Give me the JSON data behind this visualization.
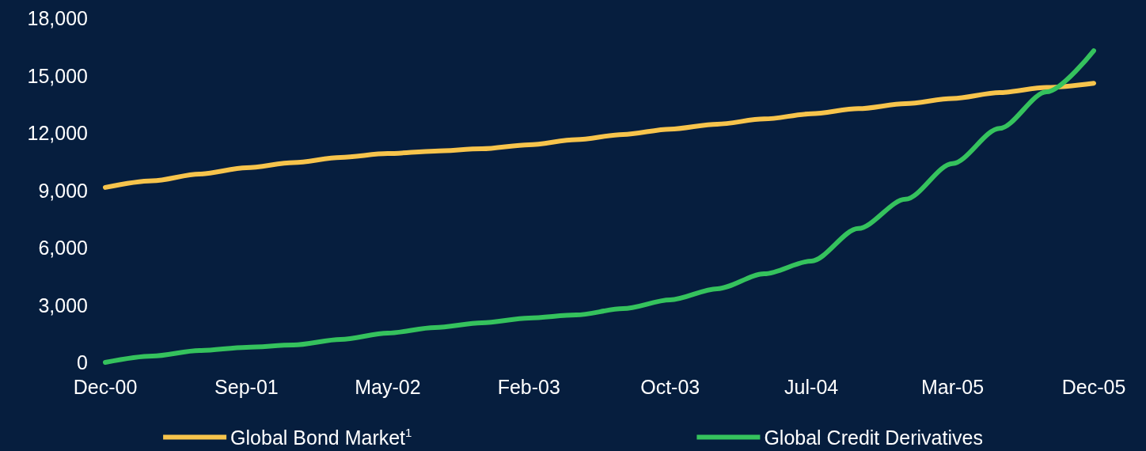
{
  "chart_data": {
    "type": "line",
    "categories": [
      "Dec-00",
      null,
      null,
      "Sep-01",
      null,
      null,
      "May-02",
      null,
      null,
      "Feb-03",
      null,
      null,
      "Oct-03",
      null,
      null,
      "Jul-04",
      null,
      null,
      "Mar-05",
      null,
      null,
      "Dec-05"
    ],
    "series": [
      {
        "name": "Global Bond Market$^{1}$",
        "color": "#f7c44c",
        "values": [
          9150,
          9500,
          9850,
          10180,
          10450,
          10720,
          10920,
          11050,
          11170,
          11380,
          11650,
          11920,
          12200,
          12460,
          12730,
          13000,
          13270,
          13530,
          13800,
          14110,
          14380,
          14600
        ]
      },
      {
        "name": "Global Credit Derivatives",
        "color": "#35c25d",
        "values": [
          0,
          330,
          620,
          790,
          910,
          1200,
          1530,
          1820,
          2070,
          2320,
          2480,
          2810,
          3270,
          3850,
          4630,
          5300,
          7000,
          8530,
          10400,
          12240,
          14150,
          16300
        ]
      }
    ],
    "ylim": [
      0,
      18000
    ],
    "yticks": [
      0,
      {
        "value": 3000,
        "label": "3,000"
      },
      {
        "value": 6000,
        "label": "6,000"
      },
      {
        "value": 9000,
        "label": "9,000"
      },
      {
        "value": 12000,
        "label": "12,000"
      },
      {
        "value": 15000,
        "label": "15,000"
      },
      {
        "value": 18000,
        "label": "18,000"
      }
    ],
    "grid": false,
    "legend": "bottom",
    "marker": "none",
    "line_style": "solid"
  }
}
